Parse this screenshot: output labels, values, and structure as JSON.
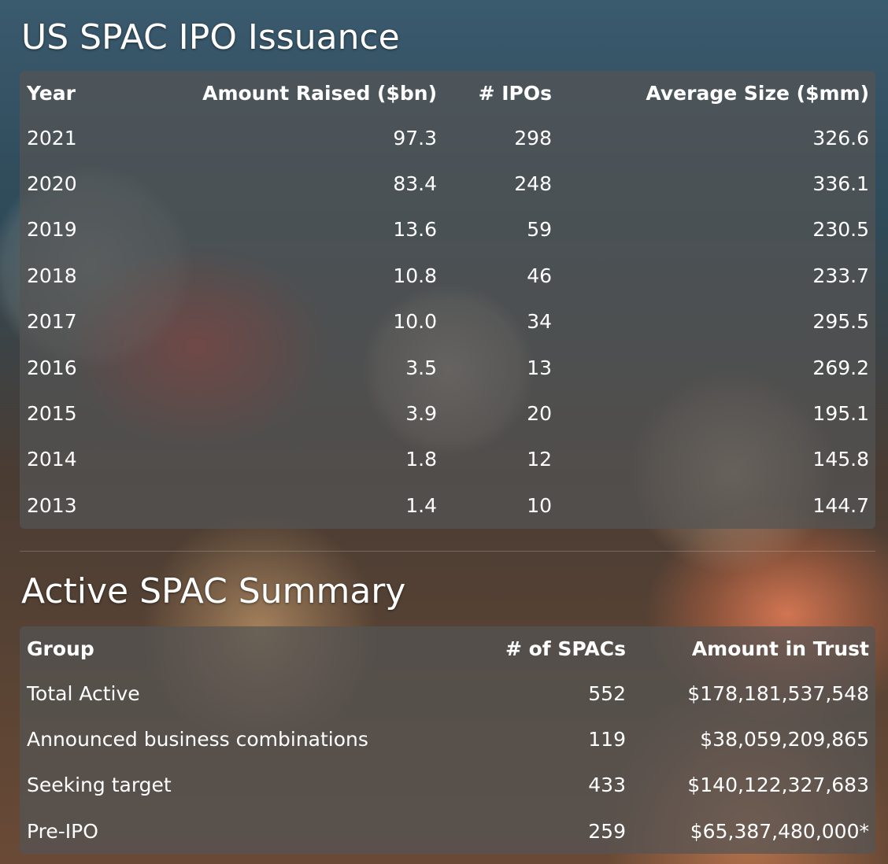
{
  "sections": [
    {
      "title": "US SPAC IPO Issuance",
      "table": {
        "header": [
          "Year",
          "Amount Raised ($bn)",
          "# IPOs",
          "Average Size ($mm)"
        ],
        "rows": [
          [
            "2021",
            "97.3",
            "298",
            "326.6"
          ],
          [
            "2020",
            "83.4",
            "248",
            "336.1"
          ],
          [
            "2019",
            "13.6",
            "59",
            "230.5"
          ],
          [
            "2018",
            "10.8",
            "46",
            "233.7"
          ],
          [
            "2017",
            "10.0",
            "34",
            "295.5"
          ],
          [
            "2016",
            "3.5",
            "13",
            "269.2"
          ],
          [
            "2015",
            "3.9",
            "20",
            "195.1"
          ],
          [
            "2014",
            "1.8",
            "12",
            "145.8"
          ],
          [
            "2013",
            "1.4",
            "10",
            "144.7"
          ]
        ]
      }
    },
    {
      "title": "Active SPAC Summary",
      "table": {
        "header": [
          "Group",
          "# of SPACs",
          "Amount in Trust"
        ],
        "rows": [
          [
            "Total Active",
            "552",
            "$178,181,537,548"
          ],
          [
            "Announced business combinations",
            "119",
            "$38,059,209,865"
          ],
          [
            "Seeking target",
            "433",
            "$140,122,327,683"
          ],
          [
            "Pre-IPO",
            "259",
            "$65,387,480,000*"
          ]
        ]
      }
    }
  ]
}
